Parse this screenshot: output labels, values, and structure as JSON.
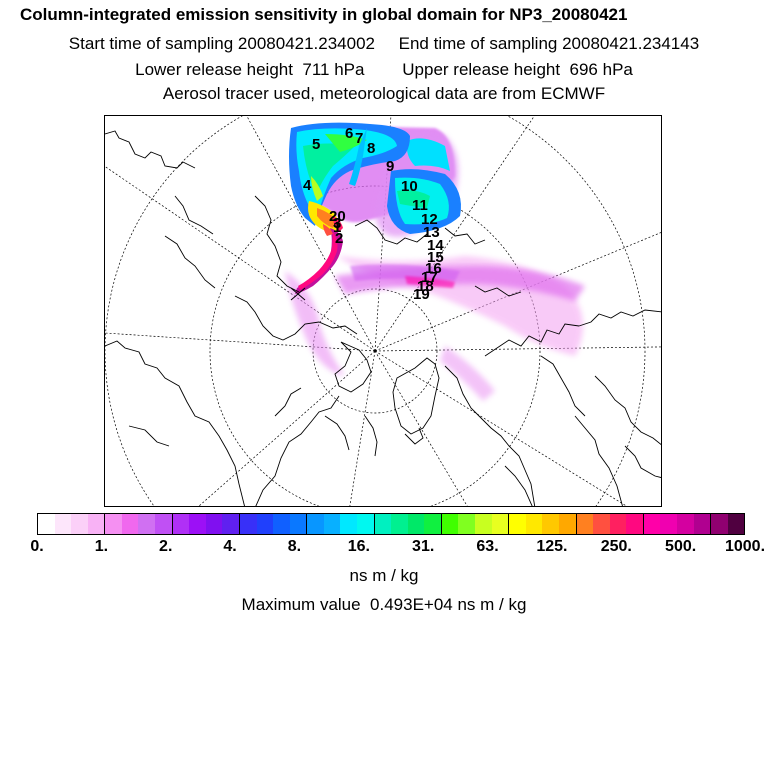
{
  "header": {
    "title": "Column-integrated emission sensitivity in global domain for NP3_20080421",
    "line2": "Start time of sampling 20080421.234002     End time of sampling 20080421.234143",
    "line3": "Lower release height  711 hPa        Upper release height  696 hPa",
    "line4": "Aerosol tracer used, meteorological data are from ECMWF"
  },
  "map": {
    "projection": "polar-stereographic",
    "day_labels": [
      "4",
      "5",
      "6",
      "7",
      "8",
      "9",
      "10",
      "11",
      "12",
      "13",
      "14",
      "15",
      "16",
      "17",
      "18",
      "19",
      "20",
      "1",
      "2",
      "3"
    ]
  },
  "colorbar": {
    "colors": [
      "#ffffff",
      "#fde6fb",
      "#fbd0f8",
      "#f8b2f5",
      "#f590f2",
      "#f068ee",
      "#d070f2",
      "#c050f4",
      "#b030f6",
      "#9c10f6",
      "#8010f0",
      "#6020f0",
      "#3830f8",
      "#2040fc",
      "#1060ff",
      "#0a78ff",
      "#0896ff",
      "#08b0ff",
      "#00e8ff",
      "#00f8f0",
      "#00f0c0",
      "#00f090",
      "#00e868",
      "#10f040",
      "#40ff00",
      "#80ff20",
      "#c8ff20",
      "#e8ff20",
      "#ffff00",
      "#ffe800",
      "#ffc800",
      "#ffa800",
      "#ff8020",
      "#ff5040",
      "#ff2060",
      "#ff0880",
      "#ff00a8",
      "#f000b0",
      "#d400a0",
      "#b00090",
      "#900070",
      "#500040"
    ],
    "tick_labels": [
      "0.",
      "1.",
      "2.",
      "4.",
      "8.",
      "16.",
      "31.",
      "63.",
      "125.",
      "250.",
      "500.",
      "1000."
    ],
    "unit": "ns m / kg"
  },
  "max_value_text": "Maximum value  0.493E+04 ns m / kg"
}
